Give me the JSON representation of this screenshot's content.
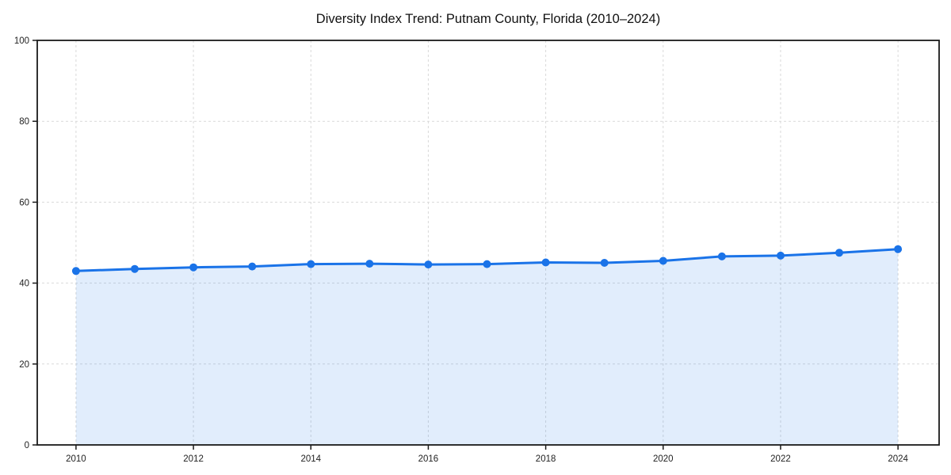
{
  "chart_data": {
    "type": "line",
    "area_fill": true,
    "title": "Diversity Index Trend: Putnam County, Florida (2010–2024)",
    "xlabel": "",
    "ylabel": "",
    "x": [
      2010,
      2011,
      2012,
      2013,
      2014,
      2015,
      2016,
      2017,
      2018,
      2019,
      2020,
      2021,
      2022,
      2023,
      2024
    ],
    "series": [
      {
        "name": "Diversity Index",
        "values": [
          43.0,
          43.5,
          43.9,
          44.1,
          44.7,
          44.8,
          44.6,
          44.7,
          45.1,
          45.0,
          45.5,
          46.6,
          46.8,
          47.5,
          48.4
        ]
      }
    ],
    "xlim": [
      2009.34,
      2024.7
    ],
    "ylim": [
      0,
      100
    ],
    "xticks": [
      2010,
      2012,
      2014,
      2016,
      2018,
      2020,
      2022,
      2024
    ],
    "yticks": [
      0,
      20,
      40,
      60,
      80,
      100
    ],
    "grid": true,
    "grid_style": "dashed",
    "legend_position": "none",
    "marker": "circle",
    "colors": {
      "line": "#1a73e8",
      "marker": "#1a73e8",
      "area": "rgba(26,115,232,0.13)",
      "grid": "#d9d9d9",
      "spine": "#1a1a1a",
      "tick": "#1a1a1a",
      "tick_label": "#222222",
      "title": "#111111",
      "background": "#ffffff"
    }
  }
}
